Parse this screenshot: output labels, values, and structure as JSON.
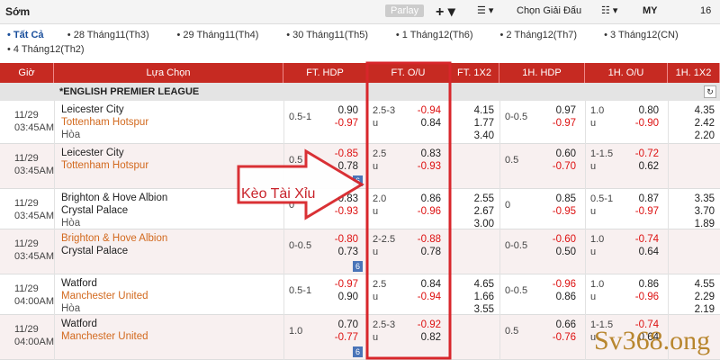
{
  "topbar": {
    "title": "Sớm",
    "parlay": "Parlay",
    "select": "Chọn Giải Đấu",
    "odds_type": "MY",
    "count": "16"
  },
  "tabs": [
    "• Tất Cả",
    "• 28 Tháng11(Th3)",
    "• 29 Tháng11(Th4)",
    "• 30 Tháng11(Th5)",
    "• 1 Tháng12(Th6)",
    "• 2 Tháng12(Th7)",
    "• 3 Tháng12(CN)",
    "• 4 Tháng12(Th2)"
  ],
  "headers": [
    "Giờ",
    "Lựa Chọn",
    "FT. HDP",
    "FT. O/U",
    "FT. 1X2",
    "1H. HDP",
    "1H. O/U",
    "1H. 1X2"
  ],
  "league": "*ENGLISH PREMIER LEAGUE",
  "rows": [
    {
      "time": [
        "11/29",
        "03:45AM"
      ],
      "teams": [
        {
          "name": "Leicester City",
          "color": "#222"
        },
        {
          "name": "Tottenham Hotspur",
          "color": "#d2691e"
        },
        {
          "name": "Hòa",
          "color": "#555"
        }
      ],
      "ft_hdp": {
        "line": "0.5-1",
        "odds": [
          "0.90",
          "-0.97"
        ]
      },
      "ft_ou": {
        "line": "2.5-3",
        "u": "u",
        "odds": [
          "-0.94",
          "0.84"
        ]
      },
      "ft_1x2": [
        "4.15",
        "1.77",
        "3.40"
      ],
      "h1_hdp": {
        "line": "0-0.5",
        "odds": [
          "0.97",
          "-0.97"
        ]
      },
      "h1_ou": {
        "line": "1.0",
        "u": "u",
        "odds": [
          "0.80",
          "-0.90"
        ]
      },
      "h1_1x2": [
        "4.35",
        "2.42",
        "2.20"
      ]
    },
    {
      "time": [
        "11/29",
        "03:45AM"
      ],
      "teams": [
        {
          "name": "Leicester City",
          "color": "#222"
        },
        {
          "name": "Tottenham Hotspur",
          "color": "#d2691e"
        }
      ],
      "ft_hdp": {
        "line": "0.5",
        "odds": [
          "-0.85",
          "0.78"
        ]
      },
      "ft_ou": {
        "line": "2.5",
        "u": "u",
        "odds": [
          "0.83",
          "-0.93"
        ]
      },
      "h1_hdp": {
        "line": "0.5",
        "odds": [
          "0.60",
          "-0.70"
        ]
      },
      "h1_ou": {
        "line": "1-1.5",
        "u": "u",
        "odds": [
          "-0.72",
          "0.62"
        ]
      },
      "more": "6"
    },
    {
      "time": [
        "11/29",
        "03:45AM"
      ],
      "teams": [
        {
          "name": "Brighton & Hove Albion",
          "color": "#222"
        },
        {
          "name": "Crystal Palace",
          "color": "#222"
        },
        {
          "name": "Hòa",
          "color": "#555"
        }
      ],
      "ft_hdp": {
        "line": "0",
        "odds": [
          "0.83",
          "-0.93"
        ]
      },
      "ft_ou": {
        "line": "2.0",
        "u": "u",
        "odds": [
          "0.86",
          "-0.96"
        ]
      },
      "ft_1x2": [
        "2.55",
        "2.67",
        "3.00"
      ],
      "h1_hdp": {
        "line": "0",
        "odds": [
          "0.85",
          "-0.95"
        ]
      },
      "h1_ou": {
        "line": "0.5-1",
        "u": "u",
        "odds": [
          "0.87",
          "-0.97"
        ]
      },
      "h1_1x2": [
        "3.35",
        "3.70",
        "1.89"
      ]
    },
    {
      "time": [
        "11/29",
        "03:45AM"
      ],
      "teams": [
        {
          "name": "Brighton & Hove Albion",
          "color": "#d2691e"
        },
        {
          "name": "Crystal Palace",
          "color": "#222"
        }
      ],
      "ft_hdp": {
        "line": "0-0.5",
        "odds": [
          "-0.80",
          "0.73"
        ]
      },
      "ft_ou": {
        "line": "2-2.5",
        "u": "u",
        "odds": [
          "-0.88",
          "0.78"
        ]
      },
      "h1_hdp": {
        "line": "0-0.5",
        "odds": [
          "-0.60",
          "0.50"
        ]
      },
      "h1_ou": {
        "line": "1.0",
        "u": "u",
        "odds": [
          "-0.74",
          "0.64"
        ]
      },
      "more": "6"
    },
    {
      "time": [
        "11/29",
        "04:00AM"
      ],
      "teams": [
        {
          "name": "Watford",
          "color": "#222"
        },
        {
          "name": "Manchester United",
          "color": "#d2691e"
        },
        {
          "name": "Hòa",
          "color": "#555"
        }
      ],
      "ft_hdp": {
        "line": "0.5-1",
        "odds": [
          "-0.97",
          "0.90"
        ]
      },
      "ft_ou": {
        "line": "2.5",
        "u": "u",
        "odds": [
          "0.84",
          "-0.94"
        ]
      },
      "ft_1x2": [
        "4.65",
        "1.66",
        "3.55"
      ],
      "h1_hdp": {
        "line": "0-0.5",
        "odds": [
          "-0.96",
          "0.86"
        ]
      },
      "h1_ou": {
        "line": "1.0",
        "u": "u",
        "odds": [
          "0.86",
          "-0.96"
        ]
      },
      "h1_1x2": [
        "4.55",
        "2.29",
        "2.19"
      ]
    },
    {
      "time": [
        "11/29",
        "04:00AM"
      ],
      "teams": [
        {
          "name": "Watford",
          "color": "#222"
        },
        {
          "name": "Manchester United",
          "color": "#d2691e"
        }
      ],
      "ft_hdp": {
        "line": "1.0",
        "odds": [
          "0.70",
          "-0.77"
        ]
      },
      "ft_ou": {
        "line": "2.5-3",
        "u": "u",
        "odds": [
          "-0.92",
          "0.82"
        ]
      },
      "h1_hdp": {
        "line": "0.5",
        "odds": [
          "0.66",
          "-0.76"
        ]
      },
      "h1_ou": {
        "line": "1-1.5",
        "u": "u",
        "odds": [
          "-0.74",
          "0.64"
        ]
      },
      "more": "6"
    }
  ],
  "annotation": "Kèo Tài Xỉu",
  "watermark": "Sv368.ong"
}
